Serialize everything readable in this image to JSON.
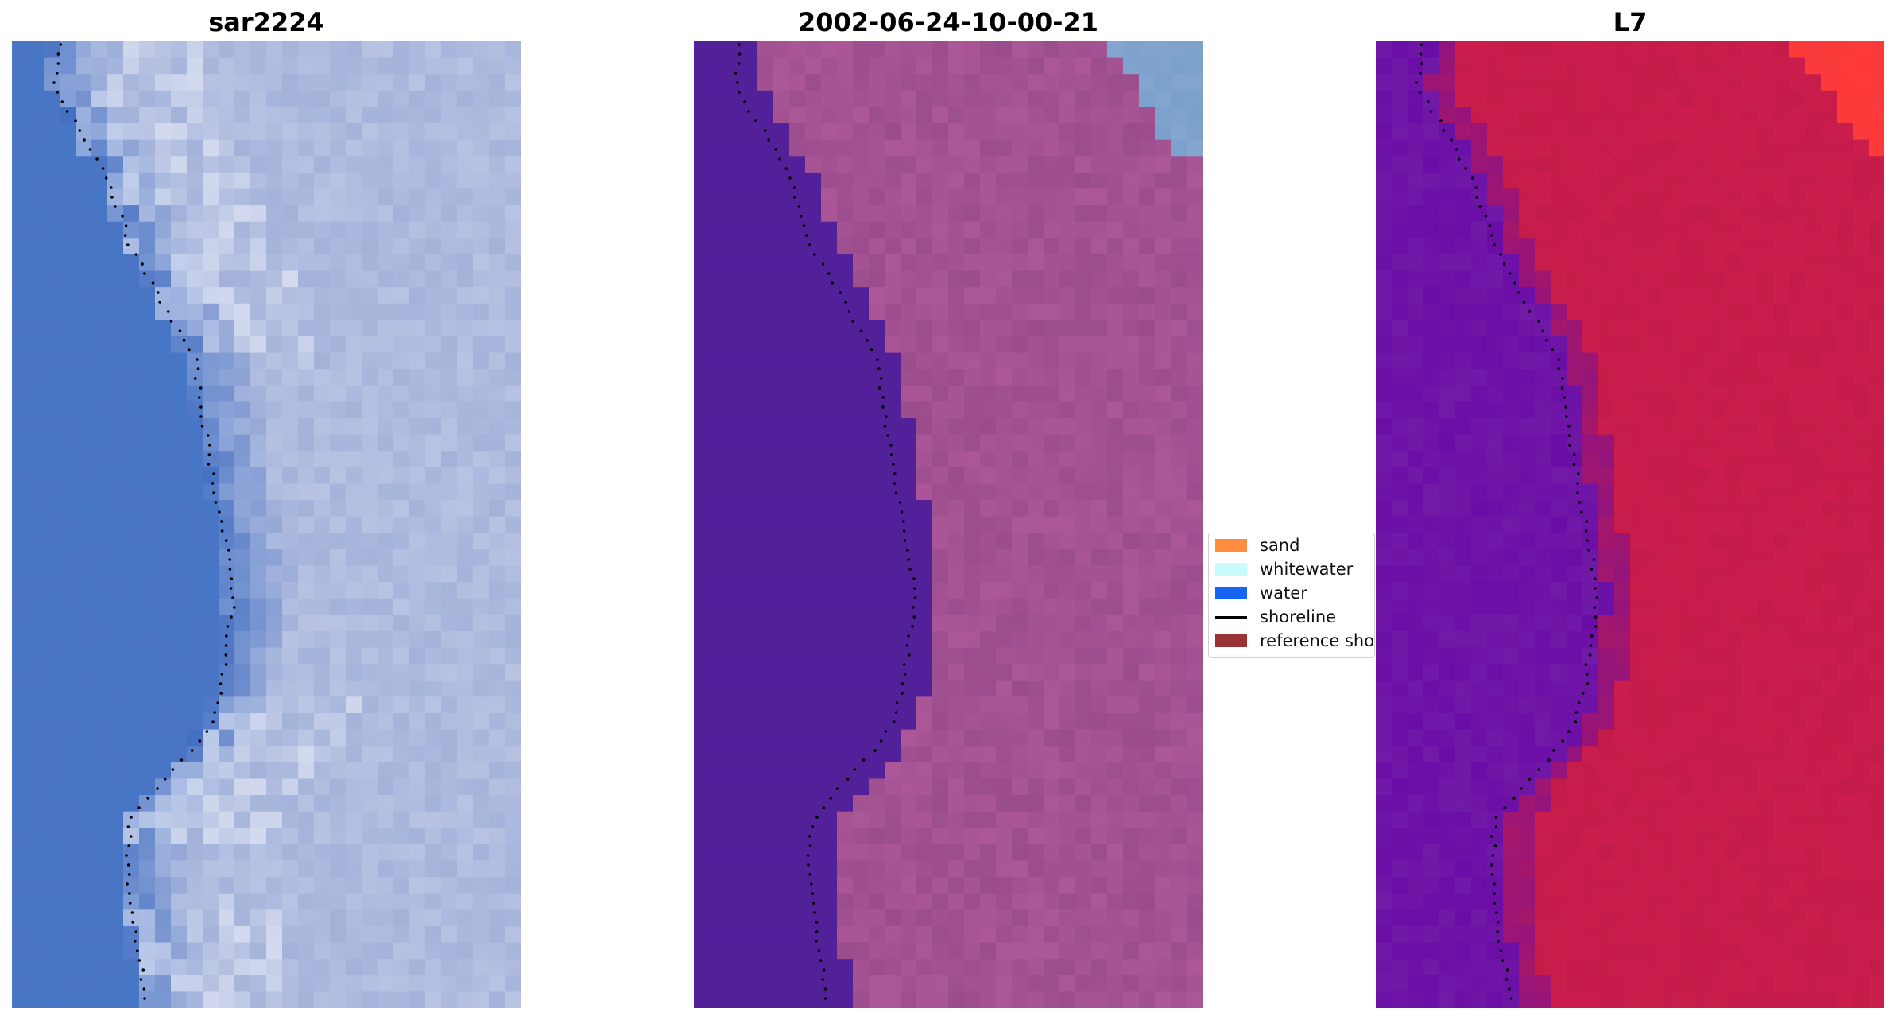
{
  "figure": {
    "panels": [
      {
        "id": "rgb",
        "title": "sar2224",
        "colormap": "rgb"
      },
      {
        "id": "classified",
        "title": "2002-06-24-10-00-21",
        "colormap": "classified"
      },
      {
        "id": "index",
        "title": "L7",
        "colormap": "index"
      }
    ],
    "legend": {
      "items": [
        {
          "label": "sand",
          "color": "#ff8c3f",
          "kind": "patch"
        },
        {
          "label": "whitewater",
          "color": "#c8fbfb",
          "kind": "patch"
        },
        {
          "label": "water",
          "color": "#1564f2",
          "kind": "patch"
        },
        {
          "label": "shoreline",
          "color": "#000000",
          "kind": "line"
        },
        {
          "label": "reference shoreline",
          "color": "#993333",
          "kind": "patch"
        }
      ]
    },
    "colors": {
      "water_blue": "#4a74c4",
      "whitewater_white": "#e8ecf8",
      "sand_light": "#a4b2da",
      "classified_water": "#52219a",
      "classified_sand": "#9a4c8c",
      "classified_corner": "#7aa0cc",
      "index_water": "#6a0da6",
      "index_land": "#c41c4a",
      "index_peak": "#ff3a3a",
      "shoreline_dots": "#000000"
    }
  }
}
